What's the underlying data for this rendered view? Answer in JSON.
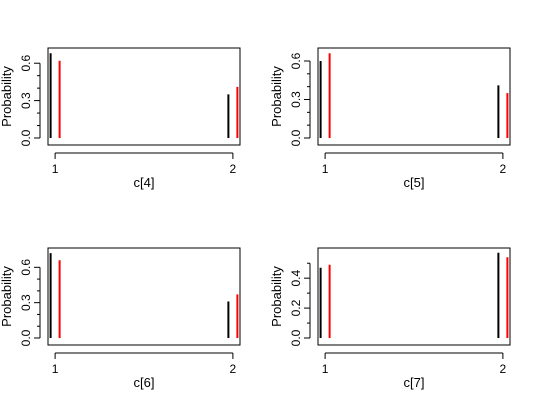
{
  "chart_data": [
    {
      "type": "bar",
      "xlabel": "c[4]",
      "ylabel": "Probability",
      "xlim": [
        0.96,
        2.04
      ],
      "ylim": [
        0,
        0.69
      ],
      "x_ticks": [
        "1",
        "2"
      ],
      "y_ticks": [
        "0.0",
        "0.3",
        "0.6"
      ],
      "minor_y_ticks": [
        0.1,
        0.2,
        0.4,
        0.5
      ],
      "series": [
        {
          "color": "#000000",
          "x": [
            1,
            2
          ],
          "values": [
            0.68,
            0.35
          ]
        },
        {
          "color": "#ff0000",
          "x": [
            1,
            2
          ],
          "values": [
            0.62,
            0.41
          ]
        }
      ]
    },
    {
      "type": "bar",
      "xlabel": "c[5]",
      "ylabel": "Probability",
      "xlim": [
        0.96,
        2.04
      ],
      "ylim": [
        0,
        0.67
      ],
      "x_ticks": [
        "1",
        "2"
      ],
      "y_ticks": [
        "0.0",
        "0.3",
        "0.6"
      ],
      "minor_y_ticks": [
        0.1,
        0.2,
        0.4,
        0.5
      ],
      "series": [
        {
          "color": "#000000",
          "x": [
            1,
            2
          ],
          "values": [
            0.6,
            0.41
          ]
        },
        {
          "color": "#ff0000",
          "x": [
            1,
            2
          ],
          "values": [
            0.66,
            0.35
          ]
        }
      ]
    },
    {
      "type": "bar",
      "xlabel": "c[6]",
      "ylabel": "Probability",
      "xlim": [
        0.96,
        2.04
      ],
      "ylim": [
        0,
        0.73
      ],
      "x_ticks": [
        "1",
        "2"
      ],
      "y_ticks": [
        "0.0",
        "0.3",
        "0.6"
      ],
      "minor_y_ticks": [
        0.1,
        0.2,
        0.4,
        0.5
      ],
      "series": [
        {
          "color": "#000000",
          "x": [
            1,
            2
          ],
          "values": [
            0.72,
            0.31
          ]
        },
        {
          "color": "#ff0000",
          "x": [
            1,
            2
          ],
          "values": [
            0.66,
            0.37
          ]
        }
      ]
    },
    {
      "type": "bar",
      "xlabel": "c[7]",
      "ylabel": "Probability",
      "xlim": [
        0.96,
        2.04
      ],
      "ylim": [
        0,
        0.575
      ],
      "x_ticks": [
        "1",
        "2"
      ],
      "y_ticks": [
        "0.0",
        "0.2",
        "0.4"
      ],
      "minor_y_ticks": [
        0.1,
        0.3,
        0.5
      ],
      "series": [
        {
          "color": "#000000",
          "x": [
            1,
            2
          ],
          "values": [
            0.47,
            0.57
          ]
        },
        {
          "color": "#ff0000",
          "x": [
            1,
            2
          ],
          "values": [
            0.49,
            0.54
          ]
        }
      ]
    }
  ]
}
